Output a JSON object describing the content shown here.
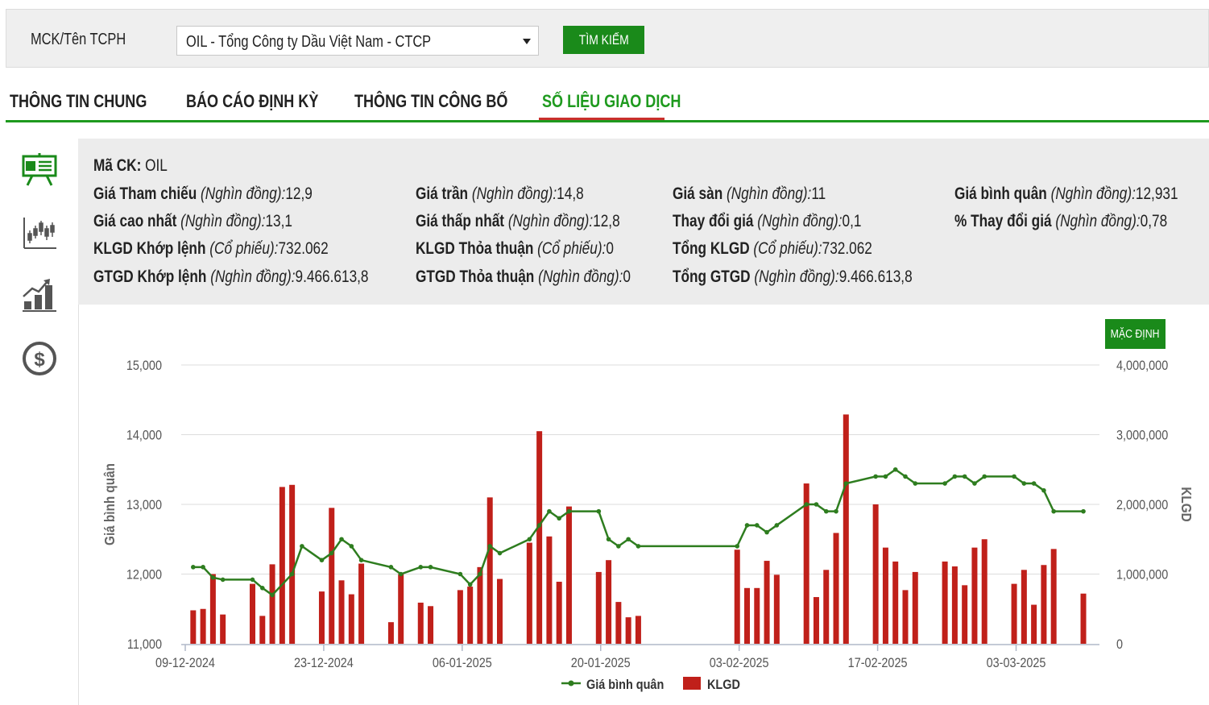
{
  "search": {
    "label": "MCK/Tên TCPH",
    "selected": "OIL - Tổng Công ty Dầu Việt Nam - CTCP",
    "button": "TÌM KIẾM"
  },
  "tabs": [
    {
      "label": "THÔNG TIN CHUNG",
      "active": false
    },
    {
      "label": "BÁO CÁO ĐỊNH KỲ",
      "active": false
    },
    {
      "label": "THÔNG TIN CÔNG BỐ",
      "active": false
    },
    {
      "label": "SỐ LIỆU GIAO DỊCH",
      "active": true
    }
  ],
  "sidebar_icons": [
    "presentation-board-icon",
    "candlestick-chart-icon",
    "growth-bar-chart-icon",
    "dollar-coin-icon"
  ],
  "info": {
    "ticker": {
      "label": "Mã CK:",
      "value": "OIL"
    },
    "rows": [
      [
        {
          "label": "Giá Tham chiếu",
          "unit": "(Nghìn đồng):",
          "value": "12,9"
        },
        {
          "label": "Giá trần",
          "unit": "(Nghìn đồng):",
          "value": "14,8"
        },
        {
          "label": "Giá sàn",
          "unit": "(Nghìn đồng):",
          "value": "11"
        },
        {
          "label": "Giá bình quân",
          "unit": "(Nghìn đồng):",
          "value": "12,931"
        }
      ],
      [
        {
          "label": "Giá cao nhất",
          "unit": "(Nghìn đồng):",
          "value": "13,1"
        },
        {
          "label": "Giá thấp nhất",
          "unit": "(Nghìn đồng):",
          "value": "12,8"
        },
        {
          "label": "Thay đổi giá",
          "unit": "(Nghìn đồng):",
          "value": "0,1"
        },
        {
          "label": "% Thay đổi giá",
          "unit": "(Nghìn đồng):",
          "value": "0,78"
        }
      ],
      [
        {
          "label": "KLGD Khớp lệnh",
          "unit": "(Cổ phiếu):",
          "value": "732.062"
        },
        {
          "label": "KLGD Thỏa thuận",
          "unit": "(Cổ phiếu):",
          "value": "0"
        },
        {
          "label": "Tổng KLGD",
          "unit": "(Cổ phiếu):",
          "value": "732.062"
        }
      ],
      [
        {
          "label": "GTGD Khớp lệnh",
          "unit": "(Nghìn đồng):",
          "value": "9.466.613,8"
        },
        {
          "label": "GTGD Thỏa thuận",
          "unit": "(Nghìn đồng):",
          "value": "0"
        },
        {
          "label": "Tổng GTGD",
          "unit": "(Nghìn đồng):",
          "value": "9.466.613,8"
        }
      ]
    ]
  },
  "chart_button": "MẶC ĐỊNH",
  "colors": {
    "accent": "#1a8a1a",
    "line": "#2e7d1f",
    "bar": "#c0201a",
    "tab_underline": "#c9302c"
  },
  "chart_data": {
    "type": "bar+line",
    "xlabel": "",
    "ylabel_left": "Giá bình quân",
    "ylabel_right": "KLGD",
    "ylim_left": [
      11000,
      15000
    ],
    "ylim_right": [
      0,
      4000000
    ],
    "yticks_left": [
      "11,000",
      "12,000",
      "13,000",
      "14,000",
      "15,000"
    ],
    "yticks_right": [
      "0",
      "1,000,000",
      "2,000,000",
      "3,000,000",
      "4,000,000"
    ],
    "x_ticks": [
      "09-12-2024",
      "23-12-2024",
      "06-01-2025",
      "20-01-2025",
      "03-02-2025",
      "17-02-2025",
      "03-03-2025"
    ],
    "x_range_days": [
      0,
      97
    ],
    "legend": [
      {
        "name": "Giá bình quân",
        "kind": "line"
      },
      {
        "name": "KLGD",
        "kind": "bar"
      }
    ],
    "legend_position": "bottom",
    "grid": true,
    "series": [
      {
        "name": "Giá bình quân",
        "kind": "line",
        "points": [
          [
            0.8,
            12100
          ],
          [
            1.8,
            12100
          ],
          [
            2.8,
            11950
          ],
          [
            3.8,
            11920
          ],
          [
            6.8,
            11920
          ],
          [
            7.8,
            11800
          ],
          [
            8.8,
            11700
          ],
          [
            10.8,
            12000
          ],
          [
            11.8,
            12400
          ],
          [
            13.8,
            12200
          ],
          [
            14.8,
            12300
          ],
          [
            15.8,
            12500
          ],
          [
            16.8,
            12400
          ],
          [
            17.8,
            12200
          ],
          [
            20.8,
            12100
          ],
          [
            21.8,
            12000
          ],
          [
            23.8,
            12100
          ],
          [
            24.8,
            12100
          ],
          [
            27.8,
            12000
          ],
          [
            28.8,
            11850
          ],
          [
            29.8,
            12000
          ],
          [
            30.8,
            12400
          ],
          [
            31.8,
            12300
          ],
          [
            34.8,
            12500
          ],
          [
            35.8,
            12700
          ],
          [
            36.8,
            12900
          ],
          [
            37.8,
            12800
          ],
          [
            38.8,
            12900
          ],
          [
            41.8,
            12900
          ],
          [
            42.8,
            12500
          ],
          [
            43.8,
            12400
          ],
          [
            44.8,
            12500
          ],
          [
            45.8,
            12400
          ],
          [
            55.8,
            12400
          ],
          [
            56.8,
            12700
          ],
          [
            57.8,
            12700
          ],
          [
            58.8,
            12600
          ],
          [
            59.8,
            12700
          ],
          [
            62.8,
            13000
          ],
          [
            63.8,
            13000
          ],
          [
            64.8,
            12900
          ],
          [
            65.8,
            12900
          ],
          [
            66.8,
            13300
          ],
          [
            69.8,
            13400
          ],
          [
            70.8,
            13400
          ],
          [
            71.8,
            13500
          ],
          [
            72.8,
            13400
          ],
          [
            73.8,
            13300
          ],
          [
            76.8,
            13300
          ],
          [
            77.8,
            13400
          ],
          [
            78.8,
            13400
          ],
          [
            79.8,
            13300
          ],
          [
            80.8,
            13400
          ],
          [
            83.8,
            13400
          ],
          [
            84.8,
            13300
          ],
          [
            85.8,
            13300
          ],
          [
            86.8,
            13200
          ],
          [
            87.8,
            12900
          ],
          [
            90.8,
            12900
          ]
        ]
      },
      {
        "name": "KLGD",
        "kind": "bar",
        "points": [
          [
            0.8,
            480000
          ],
          [
            1.8,
            500000
          ],
          [
            2.8,
            1000000
          ],
          [
            3.8,
            420000
          ],
          [
            6.8,
            860000
          ],
          [
            7.8,
            400000
          ],
          [
            8.8,
            1140000
          ],
          [
            9.8,
            2250000
          ],
          [
            10.8,
            2280000
          ],
          [
            13.8,
            750000
          ],
          [
            14.8,
            1950000
          ],
          [
            15.8,
            910000
          ],
          [
            16.8,
            710000
          ],
          [
            17.8,
            1150000
          ],
          [
            20.8,
            310000
          ],
          [
            21.8,
            1000000
          ],
          [
            23.8,
            590000
          ],
          [
            24.8,
            540000
          ],
          [
            27.8,
            770000
          ],
          [
            28.8,
            820000
          ],
          [
            29.8,
            1100000
          ],
          [
            30.8,
            2100000
          ],
          [
            31.8,
            930000
          ],
          [
            34.8,
            1450000
          ],
          [
            35.8,
            3050000
          ],
          [
            36.8,
            1540000
          ],
          [
            37.8,
            890000
          ],
          [
            38.8,
            1970000
          ],
          [
            41.8,
            1030000
          ],
          [
            42.8,
            1200000
          ],
          [
            43.8,
            600000
          ],
          [
            44.8,
            380000
          ],
          [
            45.8,
            400000
          ],
          [
            55.8,
            1350000
          ],
          [
            56.8,
            800000
          ],
          [
            57.8,
            800000
          ],
          [
            58.8,
            1190000
          ],
          [
            59.8,
            990000
          ],
          [
            62.8,
            2300000
          ],
          [
            63.8,
            670000
          ],
          [
            64.8,
            1060000
          ],
          [
            65.8,
            1590000
          ],
          [
            66.8,
            3290000
          ],
          [
            69.8,
            2000000
          ],
          [
            70.8,
            1380000
          ],
          [
            71.8,
            1180000
          ],
          [
            72.8,
            770000
          ],
          [
            73.8,
            1030000
          ],
          [
            76.8,
            1180000
          ],
          [
            77.8,
            1110000
          ],
          [
            78.8,
            840000
          ],
          [
            79.8,
            1380000
          ],
          [
            80.8,
            1500000
          ],
          [
            83.8,
            860000
          ],
          [
            84.8,
            1060000
          ],
          [
            85.8,
            560000
          ],
          [
            86.8,
            1130000
          ],
          [
            87.8,
            1360000
          ],
          [
            90.8,
            720000
          ]
        ]
      }
    ]
  }
}
